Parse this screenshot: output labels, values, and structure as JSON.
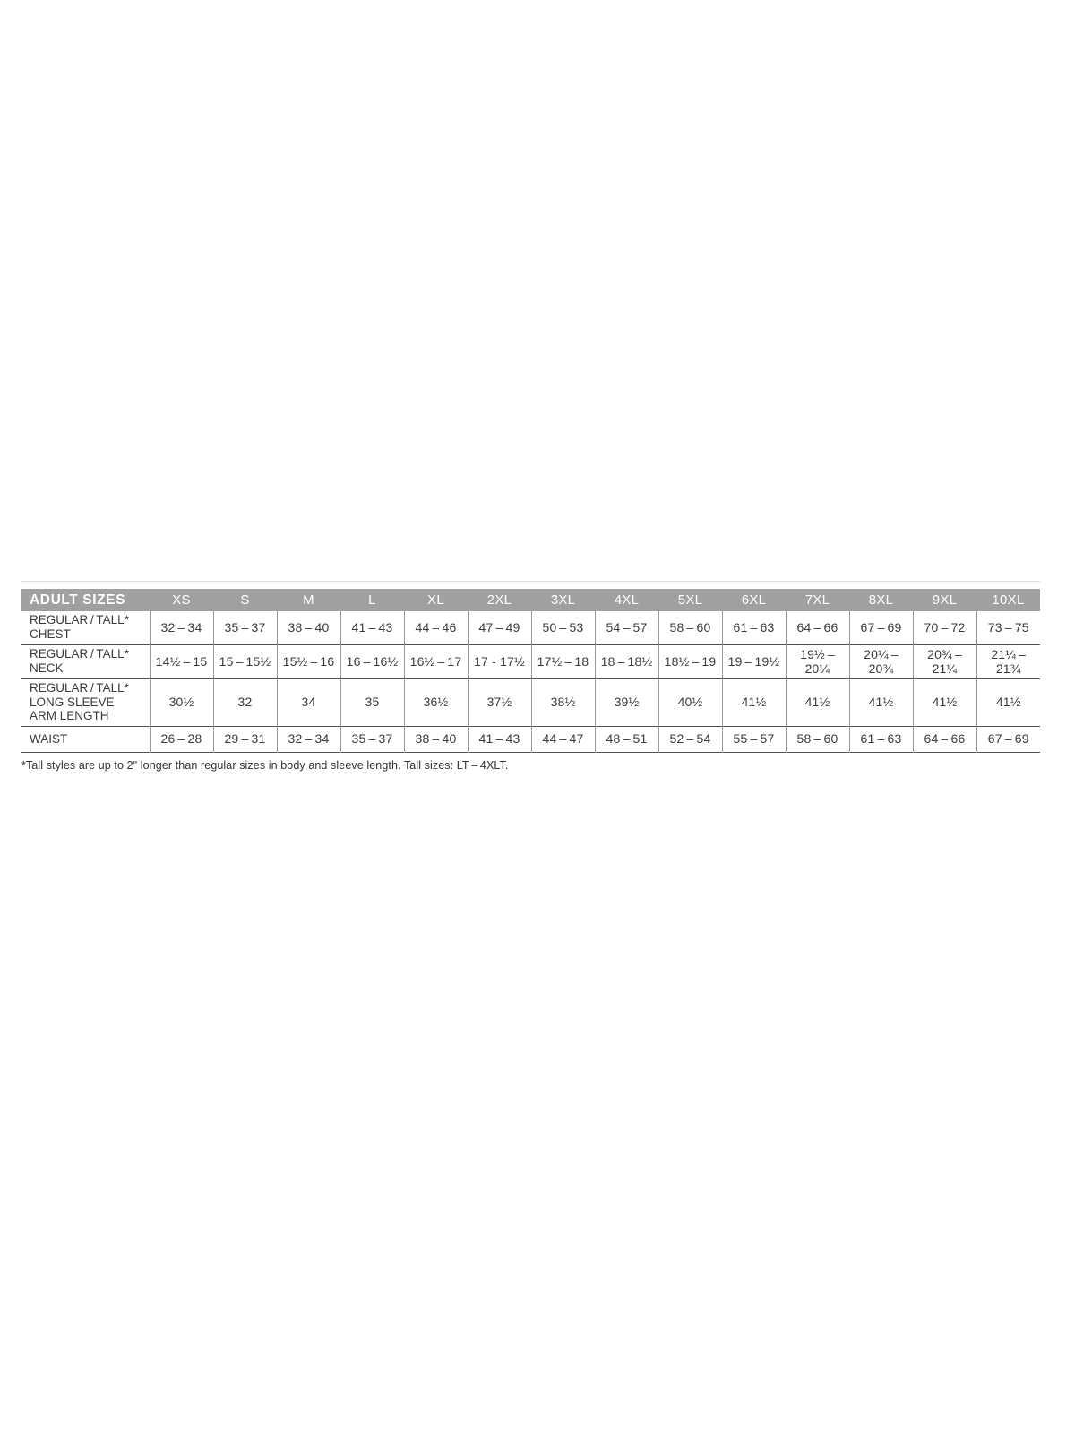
{
  "table": {
    "title": "ADULT SIZES",
    "size_headers": [
      "XS",
      "S",
      "M",
      "L",
      "XL",
      "2XL",
      "3XL",
      "4XL",
      "5XL",
      "6XL",
      "7XL",
      "8XL",
      "9XL",
      "10XL"
    ],
    "rows": [
      {
        "label": "REGULAR / TALL*\nCHEST",
        "values": [
          "32 – 34",
          "35 – 37",
          "38 – 40",
          "41 – 43",
          "44 – 46",
          "47 – 49",
          "50 – 53",
          "54 – 57",
          "58 – 60",
          "61 – 63",
          "64 – 66",
          "67 – 69",
          "70 – 72",
          "73 – 75"
        ]
      },
      {
        "label": "REGULAR / TALL*\nNECK",
        "values": [
          "14½ – 15",
          "15 – 15½",
          "15½ – 16",
          "16 – 16½",
          "16½ – 17",
          "17 - 17½",
          "17½ – 18",
          "18 – 18½",
          "18½ – 19",
          "19 – 19½",
          "19½ –\n20¼",
          "20¼ –\n20¾",
          "20¾ –\n21¼",
          "21¼ –\n21¾"
        ]
      },
      {
        "label": "REGULAR / TALL*\nLONG SLEEVE\nARM LENGTH",
        "values": [
          "30½",
          "32",
          "34",
          "35",
          "36½",
          "37½",
          "38½",
          "39½",
          "40½",
          "41½",
          "41½",
          "41½",
          "41½",
          "41½"
        ]
      },
      {
        "label": "WAIST",
        "values": [
          "26 – 28",
          "29 – 31",
          "32 – 34",
          "35 – 37",
          "38 – 40",
          "41 – 43",
          "44 – 47",
          "48 – 51",
          "52 – 54",
          "55 – 57",
          "58 – 60",
          "61 – 63",
          "64 – 66",
          "67 – 69"
        ]
      }
    ]
  },
  "footnote": "*Tall styles are up to 2\" longer than regular sizes in body and sleeve length. Tall sizes: LT – 4XLT.",
  "colors": {
    "header_bg": "#a0a0a2",
    "header_text": "#ffffff",
    "body_text": "#3a3a3c",
    "row_rule": "#525255",
    "column_rule": "#98989b",
    "top_divider": "#dcdcdc"
  }
}
